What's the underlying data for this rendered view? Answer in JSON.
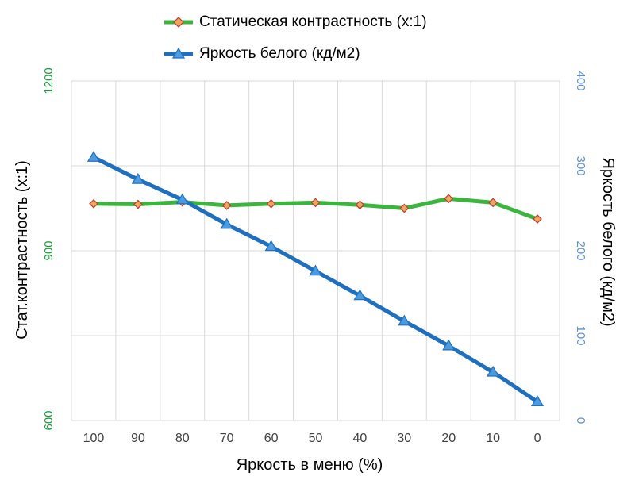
{
  "chart_data": {
    "type": "line",
    "xlabel": "Яркость в меню (%)",
    "ylabel_left": "Стат.контрастность  (x:1)",
    "ylabel_right": "Яркость белого (кд/м2)",
    "categories": [
      "100",
      "90",
      "80",
      "70",
      "60",
      "50",
      "40",
      "30",
      "20",
      "10",
      "0"
    ],
    "y_left": {
      "min": 600,
      "max": 1200,
      "ticks": [
        "600",
        "900",
        "1200"
      ],
      "minor_step": 150,
      "color": "#1a9a3a"
    },
    "y_right": {
      "min": 0,
      "max": 400,
      "ticks": [
        "0",
        "100",
        "200",
        "300",
        "400"
      ],
      "color": "#5b8fd4"
    },
    "grid": true,
    "legend_position": "top",
    "series": [
      {
        "name": "Статическая контрастность (x:1)",
        "axis": "left",
        "color": "#3cb53f",
        "marker": "diamond",
        "marker_fill": "#e8a860",
        "marker_stroke": "#c0392b",
        "values": [
          983,
          982,
          986,
          980,
          983,
          985,
          981,
          975,
          992,
          985,
          956
        ]
      },
      {
        "name": "Яркость белого (кд/м2)",
        "axis": "right",
        "color": "#1f6fc0",
        "marker": "triangle",
        "marker_fill": "#4a9be0",
        "values": [
          310,
          284,
          260,
          231,
          205,
          176,
          147,
          117,
          88,
          57,
          22
        ]
      }
    ]
  }
}
